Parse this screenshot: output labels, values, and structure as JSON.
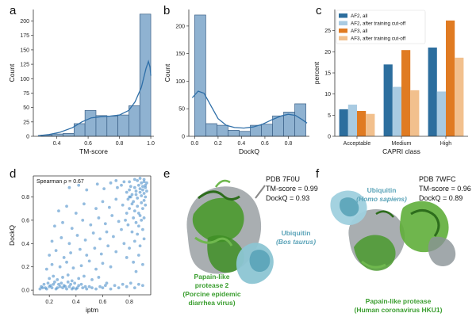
{
  "panels": {
    "a": "a",
    "b": "b",
    "c": "c",
    "d": "d",
    "e": "e",
    "f": "f"
  },
  "colors": {
    "hist_fill": "#8fb2d1",
    "hist_edge": "#3a5f86",
    "kde": "#2f6fa8",
    "af2_all": "#2c6e9e",
    "af2_cut": "#a9cbe2",
    "af3_all": "#e07b22",
    "af3_cut": "#f2c08d",
    "scatter": "#4d8fc9",
    "ubiquitin": "#5aa3b8",
    "protease": "#3a9e2f"
  },
  "chart_data": [
    {
      "id": "a",
      "type": "bar",
      "xlabel": "TM-score",
      "ylabel": "Count",
      "xlim": [
        0.25,
        1.02
      ],
      "ylim": [
        0,
        220
      ],
      "xticks": [
        0.4,
        0.6,
        0.8,
        1.0
      ],
      "xtick_labels": [
        "0.4",
        "0.6",
        "0.8",
        "1.0"
      ],
      "yticks": [
        0,
        25,
        50,
        75,
        100,
        125,
        150,
        175,
        200
      ],
      "bins": [
        {
          "x0": 0.3,
          "x1": 0.37,
          "value": 2
        },
        {
          "x0": 0.37,
          "x1": 0.44,
          "value": 4
        },
        {
          "x0": 0.44,
          "x1": 0.51,
          "value": 5
        },
        {
          "x0": 0.51,
          "x1": 0.58,
          "value": 22
        },
        {
          "x0": 0.58,
          "x1": 0.65,
          "value": 45
        },
        {
          "x0": 0.65,
          "x1": 0.72,
          "value": 36
        },
        {
          "x0": 0.72,
          "x1": 0.79,
          "value": 35
        },
        {
          "x0": 0.79,
          "x1": 0.86,
          "value": 37
        },
        {
          "x0": 0.86,
          "x1": 0.93,
          "value": 53
        },
        {
          "x0": 0.93,
          "x1": 1.0,
          "value": 212
        }
      ],
      "kde": [
        [
          0.28,
          1
        ],
        [
          0.35,
          3
        ],
        [
          0.42,
          7
        ],
        [
          0.5,
          15
        ],
        [
          0.56,
          25
        ],
        [
          0.62,
          32
        ],
        [
          0.68,
          34
        ],
        [
          0.74,
          35
        ],
        [
          0.8,
          37
        ],
        [
          0.86,
          45
        ],
        [
          0.9,
          60
        ],
        [
          0.94,
          85
        ],
        [
          0.97,
          118
        ],
        [
          0.985,
          130
        ],
        [
          0.995,
          120
        ],
        [
          1.0,
          105
        ]
      ]
    },
    {
      "id": "b",
      "type": "bar",
      "xlabel": "DockQ",
      "ylabel": "Count",
      "xlim": [
        -0.05,
        0.98
      ],
      "ylim": [
        0,
        230
      ],
      "xticks": [
        0.0,
        0.2,
        0.4,
        0.6,
        0.8
      ],
      "xtick_labels": [
        "0.0",
        "0.2",
        "0.4",
        "0.6",
        "0.8"
      ],
      "yticks": [
        0,
        50,
        100,
        150,
        200
      ],
      "bins": [
        {
          "x0": 0.0,
          "x1": 0.095,
          "value": 220
        },
        {
          "x0": 0.095,
          "x1": 0.19,
          "value": 23
        },
        {
          "x0": 0.19,
          "x1": 0.285,
          "value": 20
        },
        {
          "x0": 0.285,
          "x1": 0.38,
          "value": 11
        },
        {
          "x0": 0.38,
          "x1": 0.475,
          "value": 9
        },
        {
          "x0": 0.475,
          "x1": 0.57,
          "value": 20
        },
        {
          "x0": 0.57,
          "x1": 0.665,
          "value": 22
        },
        {
          "x0": 0.665,
          "x1": 0.76,
          "value": 37
        },
        {
          "x0": 0.76,
          "x1": 0.855,
          "value": 44
        },
        {
          "x0": 0.855,
          "x1": 0.95,
          "value": 59
        }
      ],
      "kde": [
        [
          -0.02,
          70
        ],
        [
          0.03,
          82
        ],
        [
          0.08,
          78
        ],
        [
          0.14,
          55
        ],
        [
          0.2,
          32
        ],
        [
          0.27,
          20
        ],
        [
          0.34,
          16
        ],
        [
          0.42,
          15
        ],
        [
          0.5,
          17
        ],
        [
          0.58,
          22
        ],
        [
          0.66,
          30
        ],
        [
          0.74,
          37
        ],
        [
          0.8,
          40
        ],
        [
          0.86,
          38
        ],
        [
          0.92,
          30
        ],
        [
          0.96,
          24
        ]
      ]
    },
    {
      "id": "c",
      "type": "bar",
      "xlabel": "CAPRI class",
      "ylabel": "percent",
      "ylim": [
        0,
        30
      ],
      "yticks": [
        0,
        5,
        10,
        15,
        20,
        25
      ],
      "categories": [
        "Acceptable",
        "Medium",
        "High"
      ],
      "series": [
        {
          "name": "AF2, all",
          "color_key": "af2_all",
          "values": [
            6.4,
            17.0,
            21.0
          ]
        },
        {
          "name": "AF2, after training cut-off",
          "color_key": "af2_cut",
          "values": [
            7.5,
            11.7,
            10.6
          ]
        },
        {
          "name": "AF3, all",
          "color_key": "af3_all",
          "values": [
            6.0,
            20.4,
            27.4
          ]
        },
        {
          "name": "AF3, after training cut-off",
          "color_key": "af3_cut",
          "values": [
            5.3,
            10.9,
            18.6
          ]
        }
      ],
      "legend": "top-left"
    },
    {
      "id": "d",
      "type": "scatter",
      "xlabel": "iptm",
      "ylabel": "DockQ",
      "xlim": [
        0.08,
        0.96
      ],
      "ylim": [
        -0.04,
        0.98
      ],
      "xticks": [
        0.2,
        0.4,
        0.6,
        0.8
      ],
      "xtick_labels": [
        "0.2",
        "0.4",
        "0.6",
        "0.8"
      ],
      "yticks": [
        0.0,
        0.2,
        0.4,
        0.6,
        0.8
      ],
      "ytick_labels": [
        "0.0",
        "0.2",
        "0.4",
        "0.6",
        "0.8"
      ],
      "annotation": "Spearman ρ = 0.67",
      "points": [
        [
          0.15,
          0.02
        ],
        [
          0.18,
          0.01
        ],
        [
          0.2,
          0.03
        ],
        [
          0.22,
          0.02
        ],
        [
          0.25,
          0.01
        ],
        [
          0.28,
          0.03
        ],
        [
          0.3,
          0.02
        ],
        [
          0.33,
          0.01
        ],
        [
          0.35,
          0.03
        ],
        [
          0.38,
          0.02
        ],
        [
          0.4,
          0.01
        ],
        [
          0.42,
          0.04
        ],
        [
          0.45,
          0.02
        ],
        [
          0.48,
          0.01
        ],
        [
          0.5,
          0.03
        ],
        [
          0.52,
          0.02
        ],
        [
          0.55,
          0.01
        ],
        [
          0.58,
          0.03
        ],
        [
          0.6,
          0.02
        ],
        [
          0.62,
          0.04
        ],
        [
          0.16,
          0.05
        ],
        [
          0.19,
          0.06
        ],
        [
          0.21,
          0.04
        ],
        [
          0.24,
          0.07
        ],
        [
          0.27,
          0.05
        ],
        [
          0.29,
          0.06
        ],
        [
          0.31,
          0.04
        ],
        [
          0.34,
          0.07
        ],
        [
          0.36,
          0.05
        ],
        [
          0.39,
          0.06
        ],
        [
          0.13,
          0.01
        ],
        [
          0.14,
          0.03
        ],
        [
          0.17,
          0.02
        ],
        [
          0.23,
          0.05
        ],
        [
          0.26,
          0.02
        ],
        [
          0.32,
          0.03
        ],
        [
          0.37,
          0.01
        ],
        [
          0.41,
          0.02
        ],
        [
          0.44,
          0.05
        ],
        [
          0.47,
          0.03
        ],
        [
          0.2,
          0.1
        ],
        [
          0.23,
          0.12
        ],
        [
          0.26,
          0.09
        ],
        [
          0.3,
          0.11
        ],
        [
          0.34,
          0.13
        ],
        [
          0.37,
          0.08
        ],
        [
          0.42,
          0.1
        ],
        [
          0.46,
          0.12
        ],
        [
          0.52,
          0.09
        ],
        [
          0.57,
          0.11
        ],
        [
          0.18,
          0.18
        ],
        [
          0.22,
          0.22
        ],
        [
          0.28,
          0.2
        ],
        [
          0.33,
          0.24
        ],
        [
          0.38,
          0.19
        ],
        [
          0.44,
          0.21
        ],
        [
          0.5,
          0.25
        ],
        [
          0.55,
          0.18
        ],
        [
          0.6,
          0.23
        ],
        [
          0.66,
          0.2
        ],
        [
          0.2,
          0.3
        ],
        [
          0.25,
          0.34
        ],
        [
          0.31,
          0.28
        ],
        [
          0.36,
          0.32
        ],
        [
          0.43,
          0.35
        ],
        [
          0.48,
          0.3
        ],
        [
          0.54,
          0.36
        ],
        [
          0.59,
          0.31
        ],
        [
          0.64,
          0.38
        ],
        [
          0.7,
          0.33
        ],
        [
          0.22,
          0.42
        ],
        [
          0.29,
          0.45
        ],
        [
          0.35,
          0.4
        ],
        [
          0.41,
          0.47
        ],
        [
          0.47,
          0.43
        ],
        [
          0.53,
          0.49
        ],
        [
          0.58,
          0.44
        ],
        [
          0.63,
          0.5
        ],
        [
          0.68,
          0.46
        ],
        [
          0.74,
          0.52
        ],
        [
          0.24,
          0.55
        ],
        [
          0.3,
          0.58
        ],
        [
          0.37,
          0.53
        ],
        [
          0.45,
          0.6
        ],
        [
          0.51,
          0.56
        ],
        [
          0.57,
          0.62
        ],
        [
          0.62,
          0.57
        ],
        [
          0.67,
          0.64
        ],
        [
          0.72,
          0.59
        ],
        [
          0.78,
          0.66
        ],
        [
          0.27,
          0.68
        ],
        [
          0.33,
          0.72
        ],
        [
          0.4,
          0.66
        ],
        [
          0.46,
          0.74
        ],
        [
          0.55,
          0.7
        ],
        [
          0.6,
          0.76
        ],
        [
          0.65,
          0.71
        ],
        [
          0.7,
          0.78
        ],
        [
          0.75,
          0.73
        ],
        [
          0.8,
          0.8
        ],
        [
          0.35,
          0.88
        ],
        [
          0.42,
          0.9
        ],
        [
          0.48,
          0.86
        ],
        [
          0.56,
          0.91
        ],
        [
          0.61,
          0.87
        ],
        [
          0.66,
          0.92
        ],
        [
          0.71,
          0.88
        ],
        [
          0.76,
          0.93
        ],
        [
          0.81,
          0.89
        ],
        [
          0.86,
          0.94
        ],
        [
          0.78,
          0.84
        ],
        [
          0.8,
          0.86
        ],
        [
          0.82,
          0.82
        ],
        [
          0.84,
          0.88
        ],
        [
          0.85,
          0.85
        ],
        [
          0.87,
          0.9
        ],
        [
          0.88,
          0.87
        ],
        [
          0.89,
          0.92
        ],
        [
          0.9,
          0.89
        ],
        [
          0.91,
          0.93
        ],
        [
          0.79,
          0.78
        ],
        [
          0.81,
          0.8
        ],
        [
          0.83,
          0.76
        ],
        [
          0.85,
          0.82
        ],
        [
          0.86,
          0.79
        ],
        [
          0.88,
          0.84
        ],
        [
          0.89,
          0.81
        ],
        [
          0.9,
          0.86
        ],
        [
          0.91,
          0.83
        ],
        [
          0.92,
          0.88
        ],
        [
          0.8,
          0.7
        ],
        [
          0.82,
          0.74
        ],
        [
          0.84,
          0.68
        ],
        [
          0.86,
          0.72
        ],
        [
          0.87,
          0.66
        ],
        [
          0.89,
          0.75
        ],
        [
          0.9,
          0.7
        ],
        [
          0.91,
          0.77
        ],
        [
          0.92,
          0.73
        ],
        [
          0.88,
          0.64
        ],
        [
          0.77,
          0.6
        ],
        [
          0.79,
          0.56
        ],
        [
          0.83,
          0.62
        ],
        [
          0.85,
          0.58
        ],
        [
          0.87,
          0.55
        ],
        [
          0.89,
          0.6
        ],
        [
          0.91,
          0.62
        ],
        [
          0.82,
          0.5
        ],
        [
          0.86,
          0.48
        ],
        [
          0.9,
          0.52
        ],
        [
          0.76,
          0.4
        ],
        [
          0.8,
          0.36
        ],
        [
          0.84,
          0.42
        ],
        [
          0.88,
          0.38
        ],
        [
          0.91,
          0.44
        ],
        [
          0.78,
          0.28
        ],
        [
          0.83,
          0.24
        ],
        [
          0.87,
          0.3
        ],
        [
          0.9,
          0.22
        ],
        [
          0.85,
          0.16
        ],
        [
          0.75,
          0.05
        ],
        [
          0.78,
          0.03
        ],
        [
          0.81,
          0.06
        ],
        [
          0.84,
          0.02
        ],
        [
          0.87,
          0.05
        ],
        [
          0.9,
          0.04
        ],
        [
          0.72,
          0.02
        ],
        [
          0.69,
          0.04
        ],
        [
          0.66,
          0.01
        ],
        [
          0.63,
          0.06
        ],
        [
          0.92,
          0.9
        ],
        [
          0.93,
          0.85
        ],
        [
          0.92,
          0.8
        ],
        [
          0.91,
          0.95
        ],
        [
          0.93,
          0.92
        ],
        [
          0.8,
          0.93
        ],
        [
          0.84,
          0.95
        ],
        [
          0.88,
          0.96
        ],
        [
          0.74,
          0.9
        ],
        [
          0.7,
          0.94
        ]
      ]
    }
  ],
  "structures": {
    "e": {
      "pdb": "PDB 7F0U",
      "tm": "TM-score = 0.99",
      "dockq": "DockQ = 0.93",
      "ubiquitin": "Ubiquitin",
      "ubiquitin_species": "(Bos taurus)",
      "protease_lines": [
        "Papain-like",
        "protease 2",
        "(Porcine epidemic",
        "diarrhea virus)"
      ]
    },
    "f": {
      "pdb": "PDB 7WFC",
      "tm": "TM-score = 0.96",
      "dockq": "DockQ = 0.89",
      "ubiquitin": "Ubiquitin",
      "ubiquitin_species": "(Homo sapiens)",
      "protease_lines": [
        "Papain-like protease",
        "(Human coronavirus HKU1)"
      ]
    }
  }
}
